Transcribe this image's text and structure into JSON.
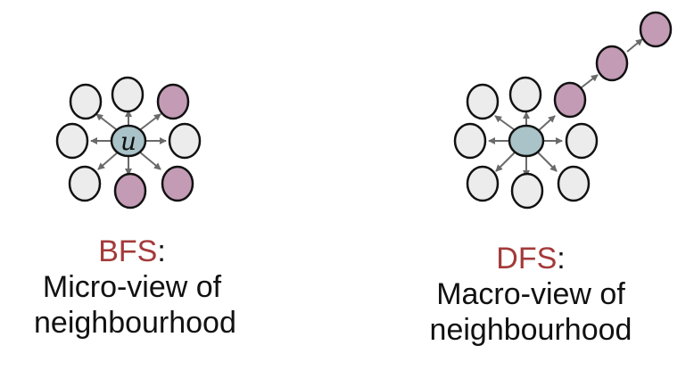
{
  "bfs": {
    "center_label": "u",
    "title": "BFS",
    "colon": ":",
    "line1": "Micro-view of",
    "line2": "neighbourhood"
  },
  "dfs": {
    "title": "DFS",
    "colon": ":",
    "line1": "Macro-view of",
    "line2": "neighbourhood"
  },
  "colors": {
    "visited_node": "#c39bb5",
    "unvisited_node": "#ececec",
    "start_node": "#a9c3c8",
    "title_accent": "#a33a3a",
    "edge": "#6a6a6a"
  }
}
